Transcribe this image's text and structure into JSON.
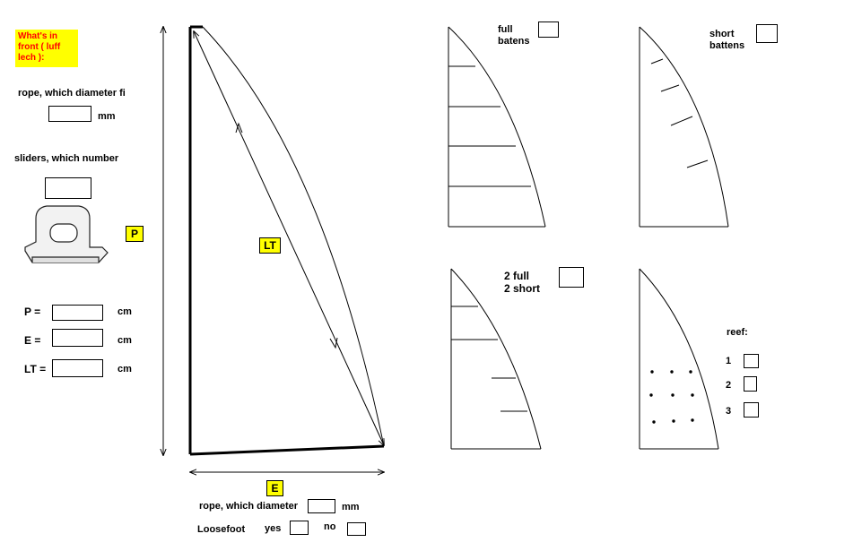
{
  "header": {
    "luff_question": "What's in front  ( luff lech ):"
  },
  "luff": {
    "rope_label": "rope, which diameter fi",
    "rope_unit": "mm",
    "sliders_label": "sliders, which number"
  },
  "measurements": {
    "p_label": "P =",
    "e_label": "E  =",
    "lt_label": "LT =",
    "unit": "cm"
  },
  "diagram_tags": {
    "p": "P",
    "lt": "LT",
    "e": "E"
  },
  "foot": {
    "rope_label": "rope, which diameter",
    "rope_unit": "mm",
    "loosefoot_label": "Loosefoot",
    "yes_label": "yes",
    "no_label": "no"
  },
  "battens": {
    "full": "full\nbatens",
    "short": "short\nbattens",
    "mixed": "2 full\n2 short"
  },
  "reef": {
    "label": "reef:",
    "options": [
      "1",
      "2",
      "3"
    ]
  }
}
